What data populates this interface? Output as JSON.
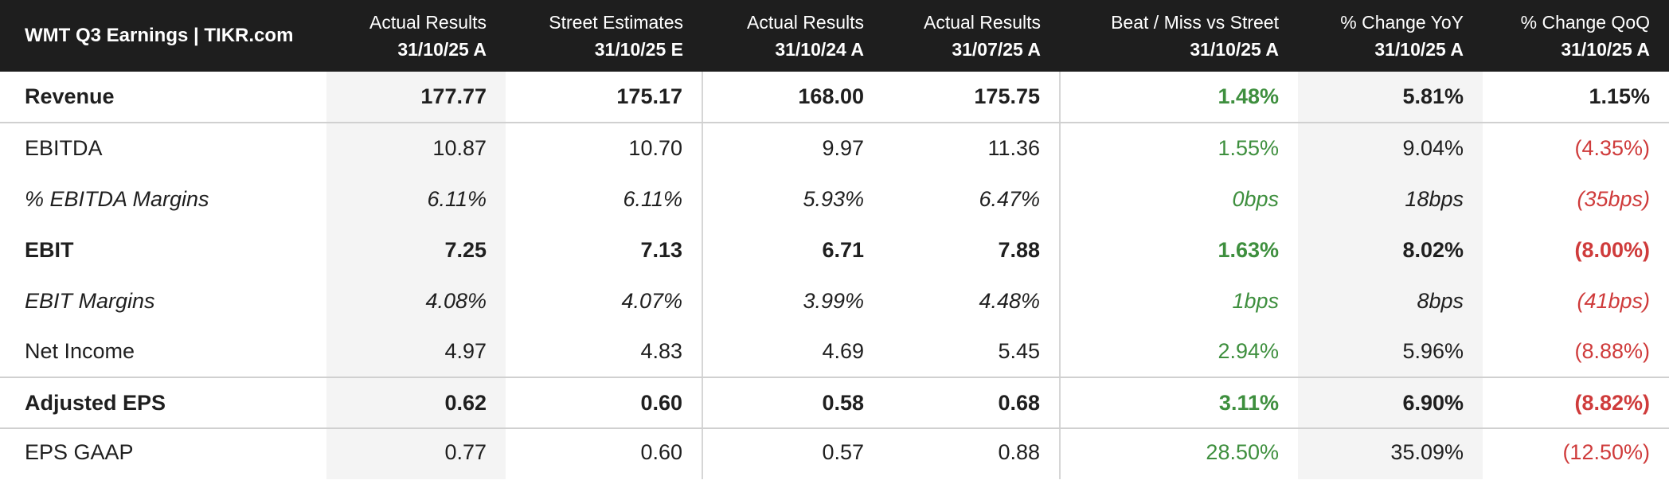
{
  "header": {
    "title": "WMT Q3 Earnings | TIKR.com",
    "columns": [
      {
        "label": "Actual Results",
        "date": "31/10/25 A"
      },
      {
        "label": "Street Estimates",
        "date": "31/10/25 E"
      },
      {
        "label": "Actual Results",
        "date": "31/10/24 A"
      },
      {
        "label": "Actual Results",
        "date": "31/07/25 A"
      },
      {
        "label": "Beat / Miss vs Street",
        "date": "31/10/25 A"
      },
      {
        "label": "% Change YoY",
        "date": "31/10/25 A"
      },
      {
        "label": "% Change QoQ",
        "date": "31/10/25 A"
      }
    ]
  },
  "rows": [
    {
      "label": "Revenue",
      "actual_q3_25": "177.77",
      "street_est": "175.17",
      "actual_q3_24": "168.00",
      "actual_q2_25": "175.75",
      "beat_miss": "1.48%",
      "yoy": "5.81%",
      "qoq": "1.15%"
    },
    {
      "label": "EBITDA",
      "actual_q3_25": "10.87",
      "street_est": "10.70",
      "actual_q3_24": "9.97",
      "actual_q2_25": "11.36",
      "beat_miss": "1.55%",
      "yoy": "9.04%",
      "qoq": "(4.35%)"
    },
    {
      "label": "% EBITDA Margins",
      "actual_q3_25": "6.11%",
      "street_est": "6.11%",
      "actual_q3_24": "5.93%",
      "actual_q2_25": "6.47%",
      "beat_miss": "0bps",
      "yoy": "18bps",
      "qoq": "(35bps)"
    },
    {
      "label": "EBIT",
      "actual_q3_25": "7.25",
      "street_est": "7.13",
      "actual_q3_24": "6.71",
      "actual_q2_25": "7.88",
      "beat_miss": "1.63%",
      "yoy": "8.02%",
      "qoq": "(8.00%)"
    },
    {
      "label": "EBIT Margins",
      "actual_q3_25": "4.08%",
      "street_est": "4.07%",
      "actual_q3_24": "3.99%",
      "actual_q2_25": "4.48%",
      "beat_miss": "1bps",
      "yoy": "8bps",
      "qoq": "(41bps)"
    },
    {
      "label": "Net Income",
      "actual_q3_25": "4.97",
      "street_est": "4.83",
      "actual_q3_24": "4.69",
      "actual_q2_25": "5.45",
      "beat_miss": "2.94%",
      "yoy": "5.96%",
      "qoq": "(8.88%)"
    },
    {
      "label": "Adjusted EPS",
      "actual_q3_25": "0.62",
      "street_est": "0.60",
      "actual_q3_24": "0.58",
      "actual_q2_25": "0.68",
      "beat_miss": "3.11%",
      "yoy": "6.90%",
      "qoq": "(8.82%)"
    },
    {
      "label": "EPS GAAP",
      "actual_q3_25": "0.77",
      "street_est": "0.60",
      "actual_q3_24": "0.57",
      "actual_q2_25": "0.88",
      "beat_miss": "28.50%",
      "yoy": "35.09%",
      "qoq": "(12.50%)"
    }
  ],
  "colors": {
    "header_bg": "#1e1e1e",
    "positive": "#3e8f3e",
    "negative": "#cf3b3b",
    "shaded_column": "#f4f4f4"
  }
}
